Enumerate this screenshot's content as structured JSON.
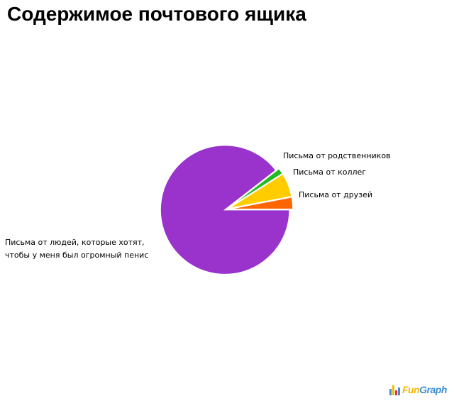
{
  "chart_data": {
    "type": "pie",
    "title": "Содержимое почтового ящика",
    "slices": [
      {
        "label": "Письма от друзей",
        "value": 3,
        "color": "#ff6600"
      },
      {
        "label": "Письма от коллег",
        "value": 6,
        "color": "#ffcc00"
      },
      {
        "label": "Письма от родственников",
        "value": 1.5,
        "color": "#22bb22"
      },
      {
        "label": "Письма от людей, которые хотят, чтобы у меня был огромный пенис",
        "label_lines": [
          "Письма от людей, которые хотят,",
          "чтобы у меня был огромный пенис"
        ],
        "value": 89.5,
        "color": "#9933cc"
      }
    ]
  },
  "logo": {
    "fun": "Fun",
    "graph": "Graph",
    "bar_colors": [
      "#3a8fd6",
      "#f5b800",
      "#e8303a",
      "#3a8fd6"
    ]
  }
}
